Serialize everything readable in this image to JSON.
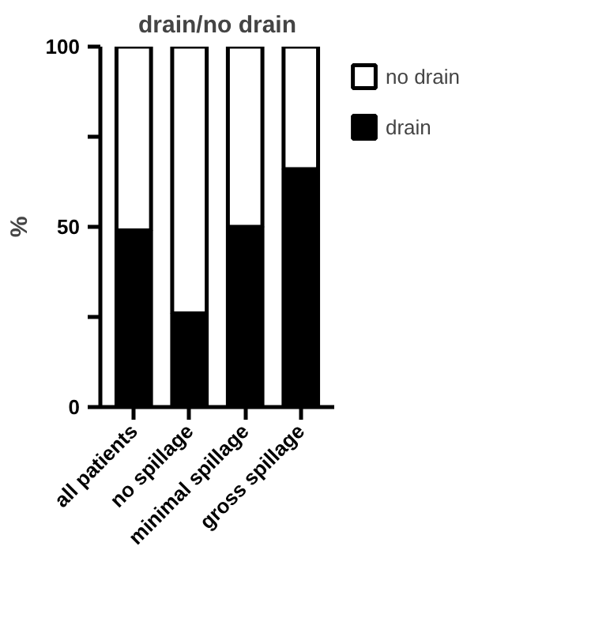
{
  "chart_data": {
    "type": "bar",
    "title": "drain/no drain",
    "ylabel": "%",
    "stacked": true,
    "categories": [
      "all patients",
      "no spillage",
      "minimal spillage",
      "gross spillage"
    ],
    "series": [
      {
        "name": "drain",
        "color": "#000000",
        "values": [
          49,
          26,
          50,
          66
        ]
      },
      {
        "name": "no drain",
        "color": "#ffffff",
        "values": [
          51,
          74,
          50,
          34
        ]
      }
    ],
    "ylim": [
      0,
      100
    ],
    "yticks": [
      0,
      {
        "value": 25,
        "label": null
      },
      50,
      {
        "value": 75,
        "label": null
      },
      100
    ],
    "grid": false,
    "legend": "right"
  }
}
